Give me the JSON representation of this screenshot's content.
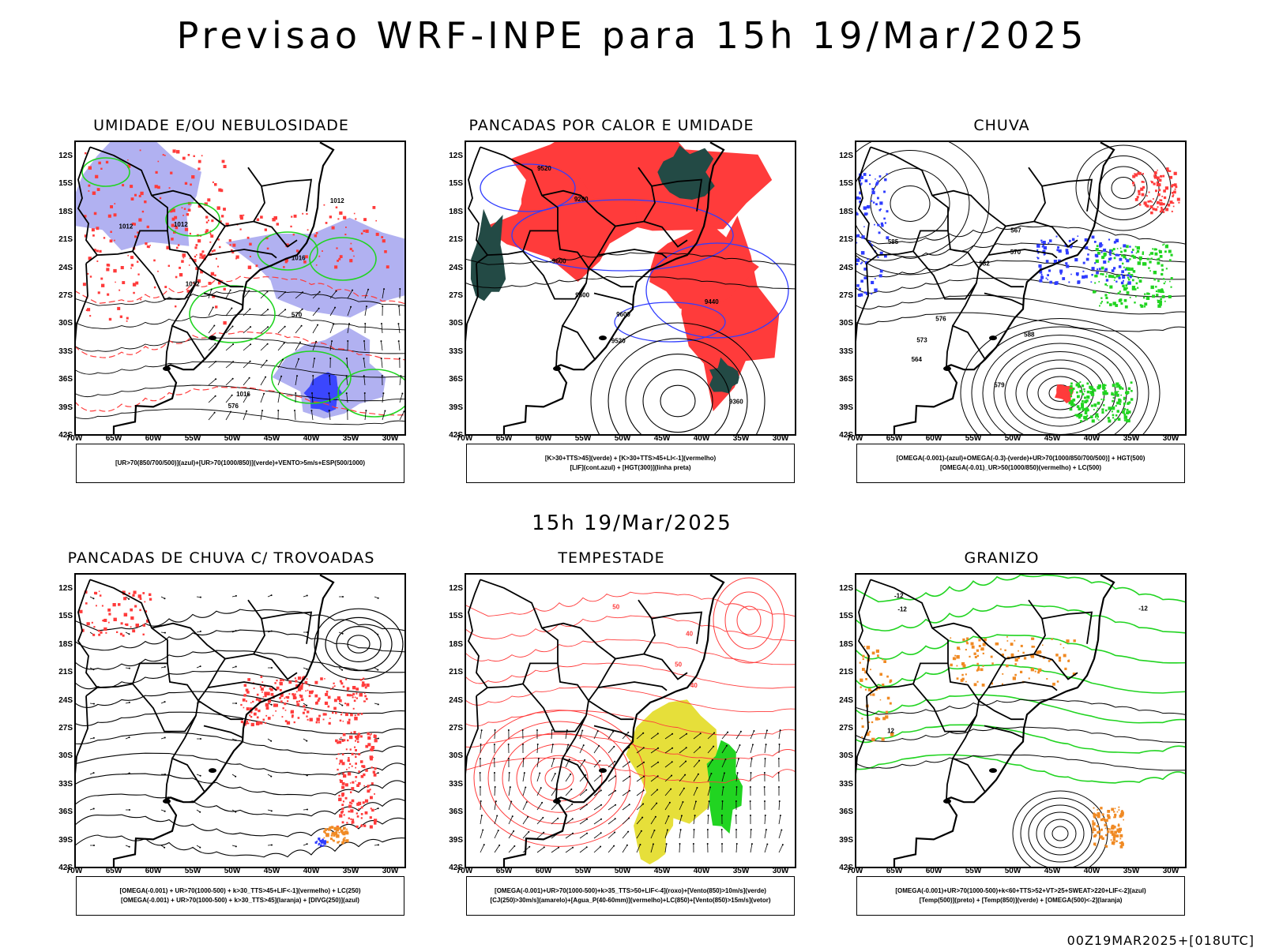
{
  "title": "Previsao WRF-INPE  para 15h 19/Mar/2025",
  "mid_title": "15h 19/Mar/2025",
  "footer": "00Z19MAR2025+[018UTC]",
  "lat_labels": [
    "12S",
    "15S",
    "18S",
    "21S",
    "24S",
    "27S",
    "30S",
    "33S",
    "36S",
    "39S",
    "42S"
  ],
  "lon_labels": [
    "70W",
    "65W",
    "60W",
    "55W",
    "50W",
    "45W",
    "40W",
    "35W",
    "30W"
  ],
  "colors": {
    "red": "#ff3b3b",
    "green": "#21d421",
    "blue": "#2f3cff",
    "lavender": "#a9a9ef",
    "darkteal": "#234a45",
    "yellow": "#e6df3a",
    "orange": "#f08a24"
  },
  "panels": [
    {
      "title": "UMIDADE E/OU NEBULOSIDADE",
      "legend": [
        "[UR>70(850/700/500)](azul)+[UR>70(1000/850)](verde)+VENTO>5m/s+ESP(500/1000)"
      ],
      "contour_labels": [
        "1012",
        "1012",
        "1016",
        "1016",
        "1012",
        "576",
        "570",
        "1012"
      ]
    },
    {
      "title": "PANCADAS POR CALOR E UMIDADE",
      "legend": [
        "[K>30+TTS>45](verde) + [K>30+TTS>45+LI<-1](vermelho)",
        "[LIF](cont.azul) + [HGT(300)](linha preta)"
      ],
      "contour_labels": [
        "9600",
        "9600",
        "9520",
        "9440",
        "9360",
        "9280",
        "9520",
        "9600"
      ]
    },
    {
      "title": "CHUVA",
      "legend": [
        "[OMEGA(-0.001)-(azul)+OMEGA(-0.3)-(verde)+UR>70(1000/850/700/500)] + HGT(500)",
        "[OMEGA(-0.01)_UR>50(1000/850)(vermelho) + LC(500)"
      ],
      "contour_labels": [
        "585",
        "582",
        "579",
        "576",
        "573",
        "570",
        "567",
        "564",
        "588"
      ]
    },
    {
      "title": "PANCADAS DE CHUVA C/ TROVOADAS",
      "legend": [
        "[OMEGA(-0.001) + UR>70(1000-500) + k>30_TTS>45+LIF<-1](vermelho) + LC(250)",
        "[OMEGA(-0.001) + UR>70(1000-500) + k>30_TTS>45](laranja) + [DIVG(250)](azul)"
      ],
      "contour_labels": []
    },
    {
      "title": "TEMPESTADE",
      "legend": [
        "[OMEGA(-0.001)+UR>70(1000-500)+k>35_TTS>50+LIF<-4](roxo)+[Vento(850)>10m/s](verde)",
        "[CJ(250)>30m/s](amarelo)+[Agua_P(40-60mm)](vermelho)+LC(850)+[Vento(850)>15m/s](vetor)"
      ],
      "contour_labels": [
        "40",
        "50",
        "50",
        "40"
      ]
    },
    {
      "title": "GRANIZO",
      "legend": [
        "[OMEGA(-0.001)+UR>70(1000-500)+k<60+TTS>52+VT>25+SWEAT>220+LIF<-2](azul)",
        "[Temp(500)](preto) + [Temp(850)](verde) + [OMEGA(500)<-2](laranja)"
      ],
      "contour_labels": [
        "-12",
        "-12",
        "12",
        "-12"
      ]
    }
  ]
}
